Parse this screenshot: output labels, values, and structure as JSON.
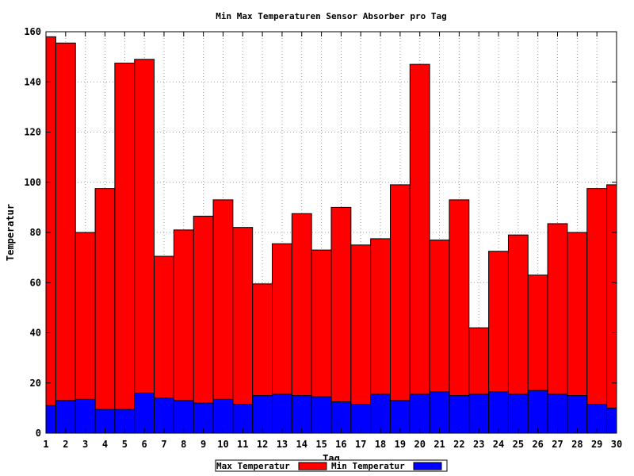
{
  "chart_data": {
    "type": "bar",
    "title": "Min Max Temperaturen Sensor Absorber pro Tag",
    "xlabel": "Tag",
    "ylabel": "Temperatur",
    "xlim": [
      1,
      30
    ],
    "ylim": [
      0,
      160
    ],
    "yticks": [
      0,
      20,
      40,
      60,
      80,
      100,
      120,
      140,
      160
    ],
    "grid": true,
    "stacking": "overlay",
    "legend_position": "bottom-center",
    "categories": [
      "1",
      "2",
      "3",
      "4",
      "5",
      "6",
      "7",
      "8",
      "9",
      "10",
      "11",
      "12",
      "13",
      "14",
      "15",
      "16",
      "17",
      "18",
      "19",
      "20",
      "21",
      "22",
      "23",
      "24",
      "25",
      "26",
      "27",
      "28",
      "29",
      "30"
    ],
    "series": [
      {
        "name": "Max Temperatur",
        "color": "#ff0000",
        "values": [
          158,
          155.5,
          80,
          97.5,
          147.5,
          149,
          70.5,
          81,
          86.5,
          93,
          82,
          59.5,
          75.5,
          87.5,
          73,
          90,
          75,
          77.5,
          99,
          147,
          77,
          93,
          42,
          72.5,
          79,
          63,
          83.5,
          80,
          97.5,
          99
        ]
      },
      {
        "name": "Min Temperatur",
        "color": "#0000ff",
        "values": [
          11,
          13,
          13.5,
          9.5,
          9.5,
          16,
          14,
          13,
          12,
          13.5,
          11.5,
          15,
          15.5,
          15,
          14.5,
          12.5,
          11.5,
          15.5,
          13,
          15.5,
          16.5,
          15,
          15.5,
          16.5,
          15.5,
          17,
          15.5,
          15,
          11.5,
          10
        ]
      }
    ]
  }
}
